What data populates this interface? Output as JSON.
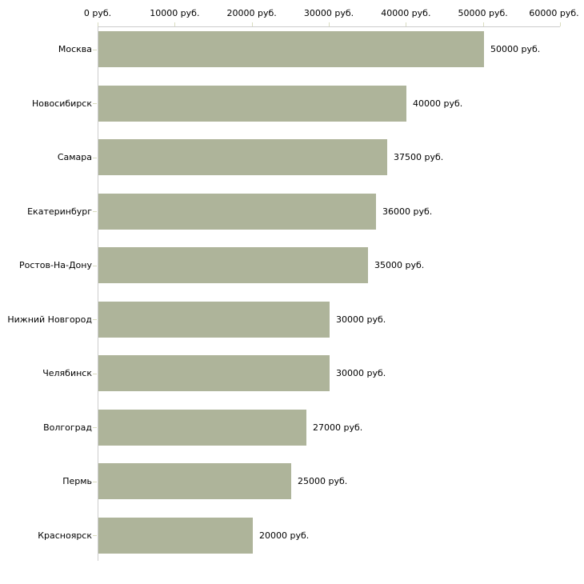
{
  "chart_data": {
    "type": "bar",
    "orientation": "horizontal",
    "title": "",
    "xlabel": "",
    "ylabel": "",
    "grid": false,
    "legend": false,
    "categories": [
      "Москва",
      "Новосибирск",
      "Самара",
      "Екатеринбург",
      "Ростов-На-Дону",
      "Нижний Новгород",
      "Челябинск",
      "Волгоград",
      "Пермь",
      "Красноярск"
    ],
    "values": [
      50000,
      40000,
      37500,
      36000,
      35000,
      30000,
      30000,
      27000,
      25000,
      20000
    ],
    "value_labels": [
      "50000 руб.",
      "40000 руб.",
      "37500 руб.",
      "36000 руб.",
      "35000 руб.",
      "30000 руб.",
      "30000 руб.",
      "27000 руб.",
      "25000 руб.",
      "20000 руб."
    ],
    "x_axis": {
      "position": "top",
      "min": 0,
      "max": 60000,
      "ticks": [
        0,
        10000,
        20000,
        30000,
        40000,
        50000,
        60000
      ],
      "tick_labels": [
        "0 руб.",
        "10000 руб.",
        "20000 руб.",
        "30000 руб.",
        "40000 руб.",
        "50000 руб.",
        "60000 руб."
      ]
    },
    "colors": {
      "bar_fill": "#aeb49a",
      "axis_line": "#cccccc",
      "tick_mark": "#d9dcc0",
      "text": "#000000",
      "background": "#ffffff"
    }
  }
}
